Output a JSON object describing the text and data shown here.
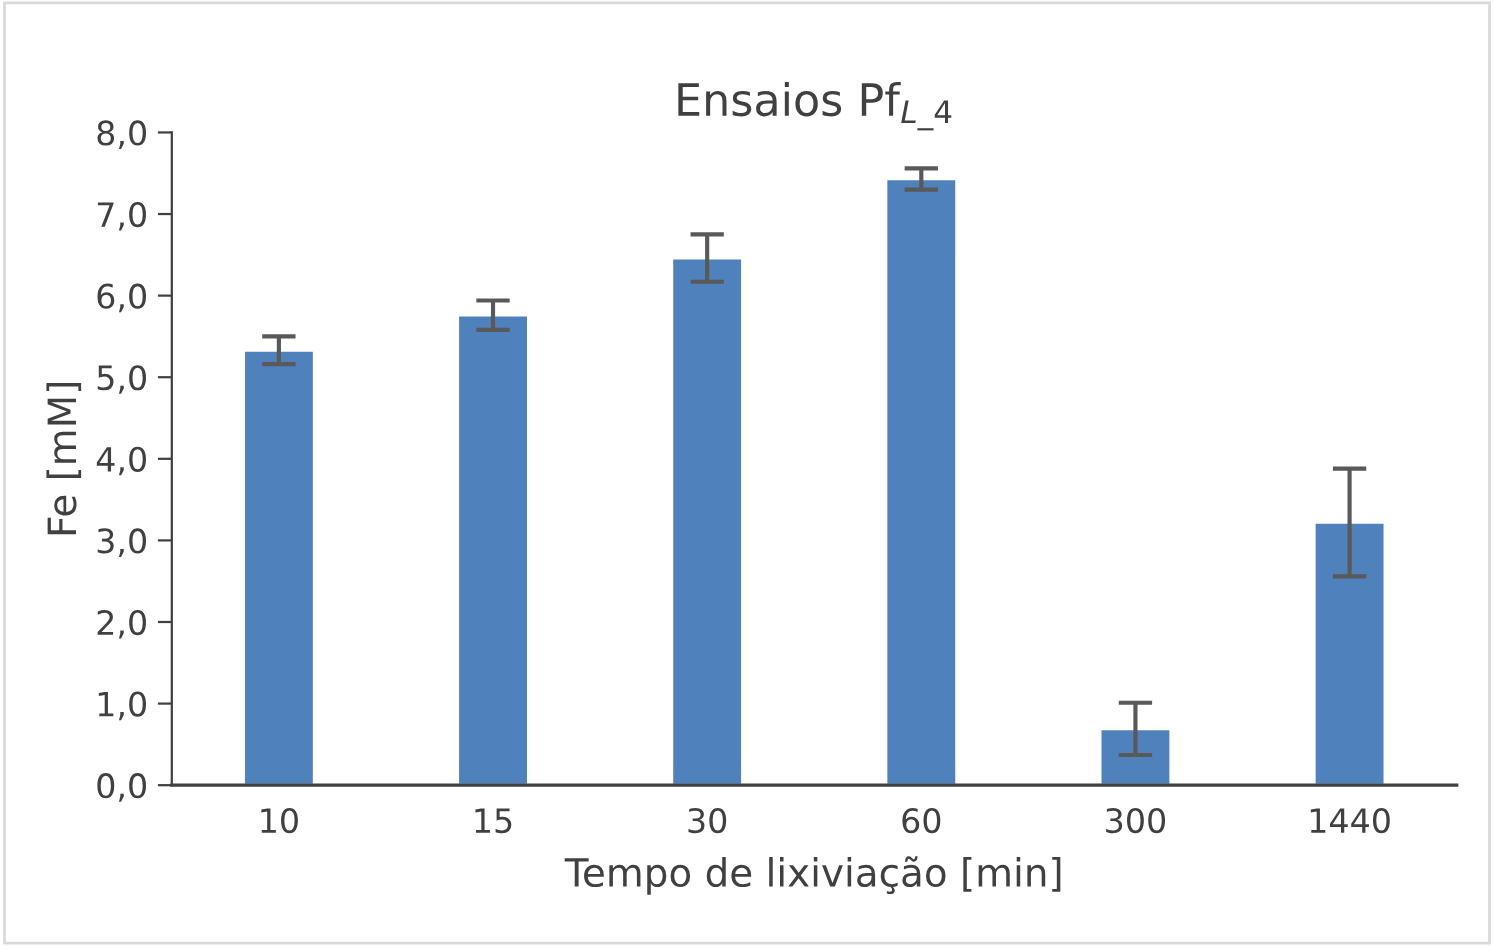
{
  "chart_data": {
    "type": "bar",
    "title": "Ensaios Pf$_{L_4}$",
    "xlabel": "Tempo de lixiviação [min]",
    "ylabel": "Fe [mM]",
    "categories": [
      "10",
      "15",
      "30",
      "60",
      "300",
      "1440"
    ],
    "values": [
      5.33,
      5.76,
      6.46,
      7.43,
      0.69,
      3.22
    ],
    "errors": [
      0.17,
      0.18,
      0.29,
      0.13,
      0.32,
      0.66
    ],
    "color": "#4f81bd",
    "ylim": [
      0,
      8
    ],
    "yticks": [
      {
        "value": 0,
        "label": "0,0"
      },
      {
        "value": 1,
        "label": "1,0"
      },
      {
        "value": 2,
        "label": "2,0"
      },
      {
        "value": 3,
        "label": "3,0"
      },
      {
        "value": 4,
        "label": "4,0"
      },
      {
        "value": 5,
        "label": "5,0"
      },
      {
        "value": 6,
        "label": "6,0"
      },
      {
        "value": 7,
        "label": "7,0"
      },
      {
        "value": 8,
        "label": "8,0"
      }
    ],
    "grid": false,
    "legend": false
  }
}
